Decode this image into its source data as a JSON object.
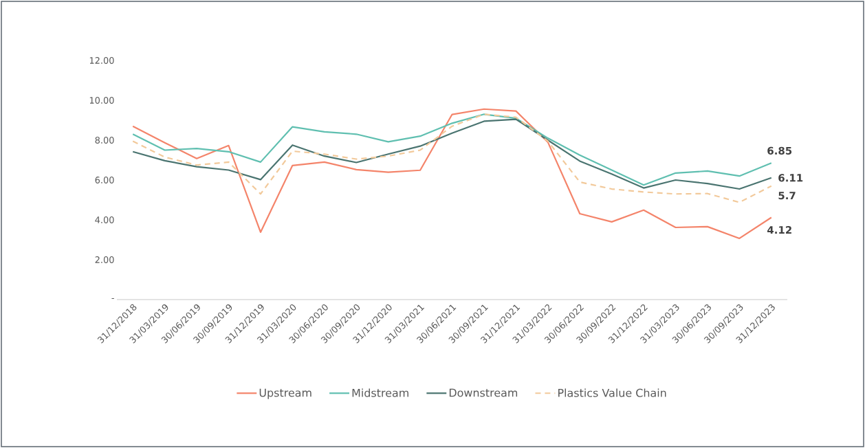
{
  "chart_data": {
    "type": "line",
    "categories": [
      "31/12/2018",
      "31/03/2019",
      "30/06/2019",
      "30/09/2019",
      "31/12/2019",
      "31/03/2020",
      "30/06/2020",
      "30/09/2020",
      "31/12/2020",
      "31/03/2021",
      "30/06/2021",
      "30/09/2021",
      "31/12/2021",
      "31/03/2022",
      "30/06/2022",
      "30/09/2022",
      "31/12/2022",
      "31/03/2023",
      "30/06/2023",
      "30/09/2023",
      "31/12/2023"
    ],
    "series": [
      {
        "name": "Upstream",
        "color": "#f4846a",
        "values": [
          8.7,
          7.87,
          7.08,
          7.73,
          3.38,
          6.73,
          6.9,
          6.52,
          6.39,
          6.49,
          9.29,
          9.56,
          9.46,
          7.9,
          4.31,
          3.9,
          4.49,
          3.62,
          3.66,
          3.07,
          4.12
        ],
        "value_labels": [
          null,
          null,
          null,
          null,
          null,
          null,
          null,
          null,
          null,
          null,
          null,
          null,
          null,
          null,
          null,
          null,
          null,
          null,
          null,
          null,
          "4.12"
        ]
      },
      {
        "name": "Midstream",
        "color": "#5fbfb0",
        "values": [
          8.3,
          7.5,
          7.58,
          7.42,
          6.9,
          8.67,
          8.42,
          8.3,
          7.92,
          8.2,
          8.85,
          9.3,
          9.1,
          8.1,
          7.25,
          6.5,
          5.75,
          6.35,
          6.45,
          6.2,
          6.85
        ],
        "value_labels": [
          null,
          null,
          null,
          null,
          null,
          null,
          null,
          null,
          null,
          null,
          null,
          null,
          null,
          null,
          null,
          null,
          null,
          null,
          null,
          null,
          "6.85"
        ]
      },
      {
        "name": "Downstream",
        "color": "#4a7470",
        "values": [
          7.42,
          6.97,
          6.67,
          6.5,
          6.02,
          7.75,
          7.2,
          6.88,
          7.3,
          7.7,
          8.35,
          8.95,
          9.05,
          8.0,
          6.95,
          6.3,
          5.6,
          6.0,
          5.82,
          5.55,
          6.11
        ],
        "value_labels": [
          null,
          null,
          null,
          null,
          null,
          null,
          null,
          null,
          null,
          null,
          null,
          null,
          null,
          null,
          null,
          null,
          null,
          null,
          null,
          null,
          "6.11"
        ]
      },
      {
        "name": "Plastics Value Chain",
        "color": "#f2c99a",
        "line_style": "dashed",
        "values": [
          7.95,
          7.15,
          6.75,
          6.9,
          5.3,
          7.45,
          7.3,
          7.05,
          7.2,
          7.5,
          8.7,
          9.3,
          9.15,
          7.95,
          5.9,
          5.55,
          5.4,
          5.3,
          5.32,
          4.88,
          5.7
        ],
        "value_labels": [
          null,
          null,
          null,
          null,
          null,
          null,
          null,
          null,
          null,
          null,
          null,
          null,
          null,
          null,
          null,
          null,
          null,
          null,
          null,
          null,
          "5.7"
        ]
      }
    ],
    "ylim": [
      0,
      12
    ],
    "yticks": [
      {
        "value": 0,
        "label": "-"
      },
      {
        "value": 2,
        "label": "2.00"
      },
      {
        "value": 4,
        "label": "4.00"
      },
      {
        "value": 6,
        "label": "6.00"
      },
      {
        "value": 8,
        "label": "8.00"
      },
      {
        "value": 10,
        "label": "10.00"
      },
      {
        "value": 12,
        "label": "12.00"
      }
    ],
    "grid": false,
    "legend": "bottom",
    "line_style": "solid",
    "marker": "none"
  }
}
